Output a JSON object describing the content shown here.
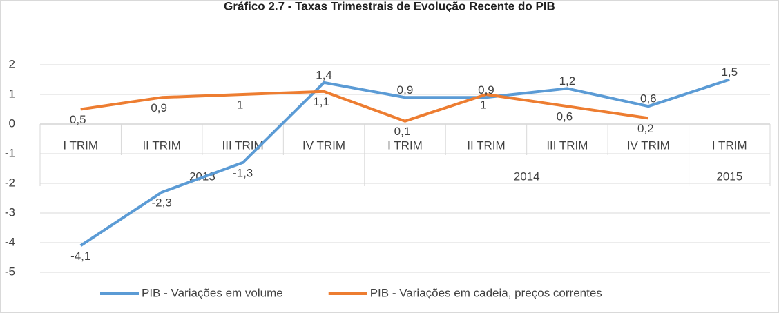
{
  "chart_data": {
    "type": "line",
    "title": "Gráfico 2.7 - Taxas Trimestrais de Evolução Recente do PIB",
    "categories": [
      "I TRIM",
      "II TRIM",
      "III TRIM",
      "IV TRIM",
      "I TRIM",
      "II TRIM",
      "III TRIM",
      "IV TRIM",
      "I TRIM"
    ],
    "groups": [
      {
        "label": "2013",
        "count": 4
      },
      {
        "label": "2014",
        "count": 4
      },
      {
        "label": "2015",
        "count": 1
      }
    ],
    "series": [
      {
        "name": "PIB - Variações em volume",
        "color": "#5b9bd5",
        "values": [
          -4.1,
          -2.3,
          -1.3,
          1.4,
          0.9,
          0.9,
          1.2,
          0.6,
          1.5
        ],
        "value_labels": [
          "-4,1",
          "-2,3",
          "-1,3",
          "1,4",
          "0,9",
          "0,9",
          "1,2",
          "0,6",
          "1,5"
        ]
      },
      {
        "name": "PIB - Variações em cadeia, preços correntes",
        "color": "#ed7d31",
        "values": [
          0.5,
          0.9,
          1,
          1.1,
          0.1,
          1,
          0.6,
          0.2,
          null
        ],
        "value_labels": [
          "0,5",
          "0,9",
          "1",
          "1,1",
          "0,1",
          "1",
          "0,6",
          "0,2",
          null
        ]
      }
    ],
    "ylim": [
      -5,
      2
    ],
    "yticks": [
      -5,
      -4,
      -3,
      -2,
      -1,
      0,
      1,
      2
    ],
    "grid": true,
    "legend": "bottom"
  }
}
